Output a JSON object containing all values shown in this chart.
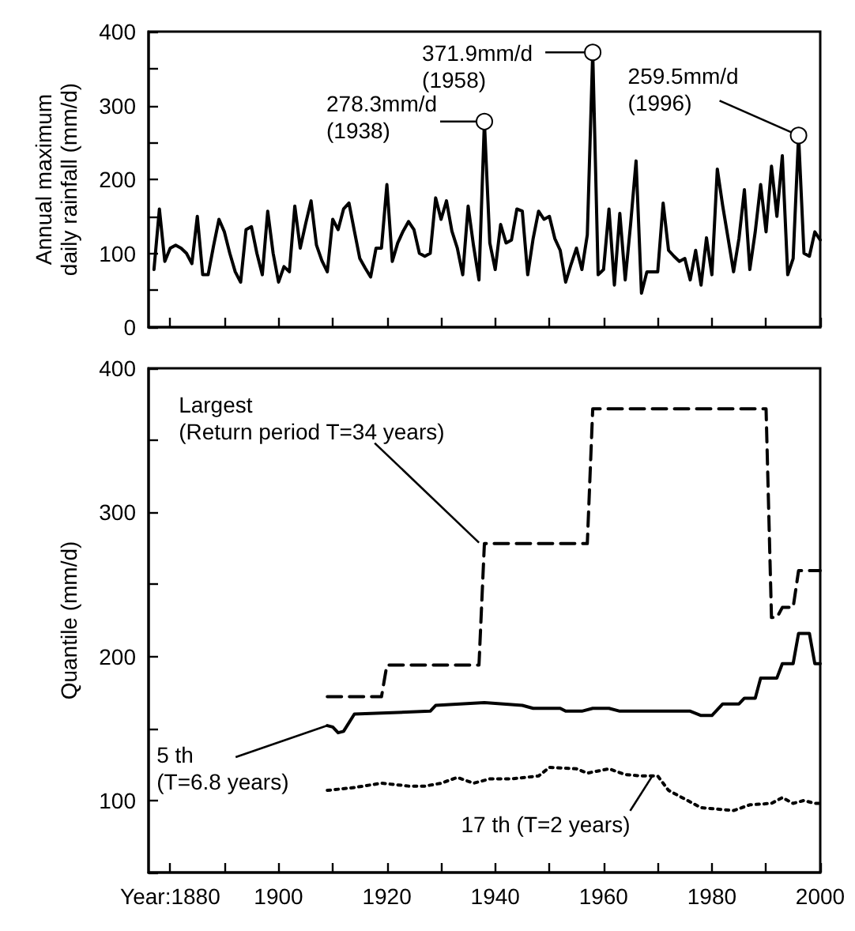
{
  "chart_data": [
    {
      "type": "line",
      "ylabel": "Annual maximum\ndaily rainfall (mm/d)",
      "xlim": [
        1876,
        2000
      ],
      "ylim": [
        0,
        400
      ],
      "xticks": [
        {
          "value": 1880,
          "label": null
        },
        {
          "value": 1890,
          "label": null
        },
        {
          "value": 1900,
          "label": null
        },
        {
          "value": 1910,
          "label": null
        },
        {
          "value": 1920,
          "label": null
        },
        {
          "value": 1930,
          "label": null
        },
        {
          "value": 1940,
          "label": null
        },
        {
          "value": 1950,
          "label": null
        },
        {
          "value": 1960,
          "label": null
        },
        {
          "value": 1970,
          "label": null
        },
        {
          "value": 1980,
          "label": null
        },
        {
          "value": 1990,
          "label": null
        },
        {
          "value": 2000,
          "label": null
        }
      ],
      "yticks": [
        0,
        {
          "value": 50,
          "label": null
        },
        100,
        {
          "value": 150,
          "label": null
        },
        200,
        {
          "value": 250,
          "label": null
        },
        300,
        {
          "value": 350,
          "label": null
        },
        400
      ],
      "tick_labels": "y",
      "x": [
        1877,
        1878,
        1879,
        1880,
        1881,
        1882,
        1883,
        1884,
        1885,
        1886,
        1887,
        1888,
        1889,
        1890,
        1891,
        1892,
        1893,
        1894,
        1895,
        1896,
        1897,
        1898,
        1899,
        1900,
        1901,
        1902,
        1903,
        1904,
        1905,
        1906,
        1907,
        1908,
        1909,
        1910,
        1911,
        1912,
        1913,
        1914,
        1915,
        1916,
        1917,
        1918,
        1919,
        1920,
        1921,
        1922,
        1923,
        1924,
        1925,
        1926,
        1927,
        1928,
        1929,
        1930,
        1931,
        1932,
        1933,
        1934,
        1935,
        1936,
        1937,
        1938,
        1939,
        1940,
        1941,
        1942,
        1943,
        1944,
        1945,
        1946,
        1947,
        1948,
        1949,
        1950,
        1951,
        1952,
        1953,
        1954,
        1955,
        1956,
        1957,
        1958,
        1959,
        1960,
        1961,
        1962,
        1963,
        1964,
        1965,
        1966,
        1967,
        1968,
        1969,
        1970,
        1971,
        1972,
        1973,
        1974,
        1975,
        1976,
        1977,
        1978,
        1979,
        1980,
        1981,
        1982,
        1983,
        1984,
        1985,
        1986,
        1987,
        1988,
        1989,
        1990,
        1991,
        1992,
        1993,
        1994,
        1995,
        1996,
        1997,
        1998,
        1999,
        2000
      ],
      "series": [
        {
          "color": "#000000",
          "line_style": "solid",
          "values": [
            78,
            160,
            89,
            107,
            111,
            107,
            100,
            86,
            150,
            71,
            71,
            110,
            146,
            129,
            100,
            75,
            61,
            132,
            136,
            100,
            71,
            157,
            100,
            61,
            82,
            75,
            164,
            107,
            140,
            171,
            111,
            90,
            75,
            146,
            132,
            160,
            168,
            130,
            93,
            80,
            68,
            107,
            107,
            193,
            89,
            114,
            130,
            143,
            132,
            100,
            96,
            100,
            175,
            146,
            171,
            130,
            107,
            71,
            164,
            110,
            64,
            278.3,
            114,
            78,
            139,
            114,
            118,
            160,
            157,
            71,
            120,
            157,
            146,
            150,
            120,
            104,
            61,
            85,
            107,
            78,
            125,
            371.9,
            71,
            78,
            160,
            57,
            154,
            64,
            140,
            225,
            46,
            75,
            75,
            75,
            168,
            104,
            96,
            89,
            93,
            64,
            104,
            57,
            121,
            71,
            214,
            164,
            120,
            75,
            120,
            186,
            78,
            129,
            193,
            129,
            218,
            150,
            232,
            71,
            93,
            259.5,
            100,
            96,
            129,
            118
          ]
        }
      ],
      "annotations": [
        {
          "text": "278.3mm/d\n(1938)",
          "x": 1938,
          "y": 278.3
        },
        {
          "text": "371.9mm/d\n(1958)",
          "x": 1958,
          "y": 371.9
        },
        {
          "text": "259.5mm/d\n(1996)",
          "x": 1996,
          "y": 259.5
        }
      ]
    },
    {
      "type": "line",
      "ylabel": "Quantile (mm/d)",
      "xlim": [
        1876,
        2000
      ],
      "ylim": [
        50,
        400
      ],
      "xticks": [
        {
          "value": 1880,
          "label": "Year:1880"
        },
        {
          "value": 1890,
          "label": null
        },
        1900,
        {
          "value": 1910,
          "label": null
        },
        1920,
        {
          "value": 1930,
          "label": null
        },
        1940,
        {
          "value": 1950,
          "label": null
        },
        1960,
        {
          "value": 1970,
          "label": null
        },
        1980,
        {
          "value": 1990,
          "label": null
        },
        2000
      ],
      "yticks": [
        {
          "value": 50,
          "label": null
        },
        100,
        {
          "value": 150,
          "label": null
        },
        200,
        {
          "value": 250,
          "label": null
        },
        300,
        {
          "value": 350,
          "label": null
        },
        400
      ],
      "series": [
        {
          "color": "#000000",
          "line_style": "dashed",
          "x": [
            1909,
            1919,
            1920,
            1937,
            1938,
            1957,
            1958,
            1990,
            1991,
            1992,
            1993,
            1995,
            1996,
            2000
          ],
          "values": [
            172,
            172,
            194,
            194,
            278.3,
            278.3,
            371.9,
            371.9,
            227,
            227,
            234,
            234,
            259.5,
            259.5
          ]
        },
        {
          "color": "#000000",
          "line_style": "solid",
          "x": [
            1909,
            1910,
            1911,
            1912,
            1914,
            1928,
            1929,
            1938,
            1945,
            1947,
            1952,
            1953,
            1956,
            1958,
            1961,
            1963,
            1968,
            1976,
            1978,
            1980,
            1982,
            1985,
            1986,
            1988,
            1989,
            1992,
            1993,
            1995,
            1996,
            1998,
            1999,
            2000
          ],
          "values": [
            152,
            151,
            147,
            148,
            160,
            162,
            166,
            168,
            166,
            164,
            164,
            162,
            162,
            164,
            164,
            162,
            162,
            162,
            159,
            159,
            167,
            167,
            171,
            171,
            185,
            185,
            195,
            195,
            216,
            216,
            195,
            195
          ]
        },
        {
          "color": "#000000",
          "line_style": "dotted",
          "x": [
            1909,
            1914,
            1919,
            1924,
            1927,
            1930,
            1933,
            1936,
            1939,
            1943,
            1948,
            1950,
            1955,
            1957,
            1961,
            1964,
            1967,
            1970,
            1972,
            1975,
            1978,
            1984,
            1987,
            1991,
            1993,
            1995,
            1997,
            1999,
            2000
          ],
          "values": [
            107,
            109,
            112,
            110,
            110,
            112,
            116,
            112,
            115,
            115,
            117,
            123,
            122,
            119,
            122,
            118,
            117,
            117,
            107,
            101,
            95,
            93,
            97,
            98,
            102,
            98,
            100,
            98,
            98
          ]
        }
      ],
      "annotations": [
        {
          "text": "Largest\n(Return period T=34 years)",
          "x": 1937,
          "y": 279
        },
        {
          "text": "5 th\n(T=6.8 years)",
          "x": 1909,
          "y": 152
        },
        {
          "text": "17 th (T=2 years)",
          "x": 1969,
          "y": 117
        }
      ]
    }
  ]
}
